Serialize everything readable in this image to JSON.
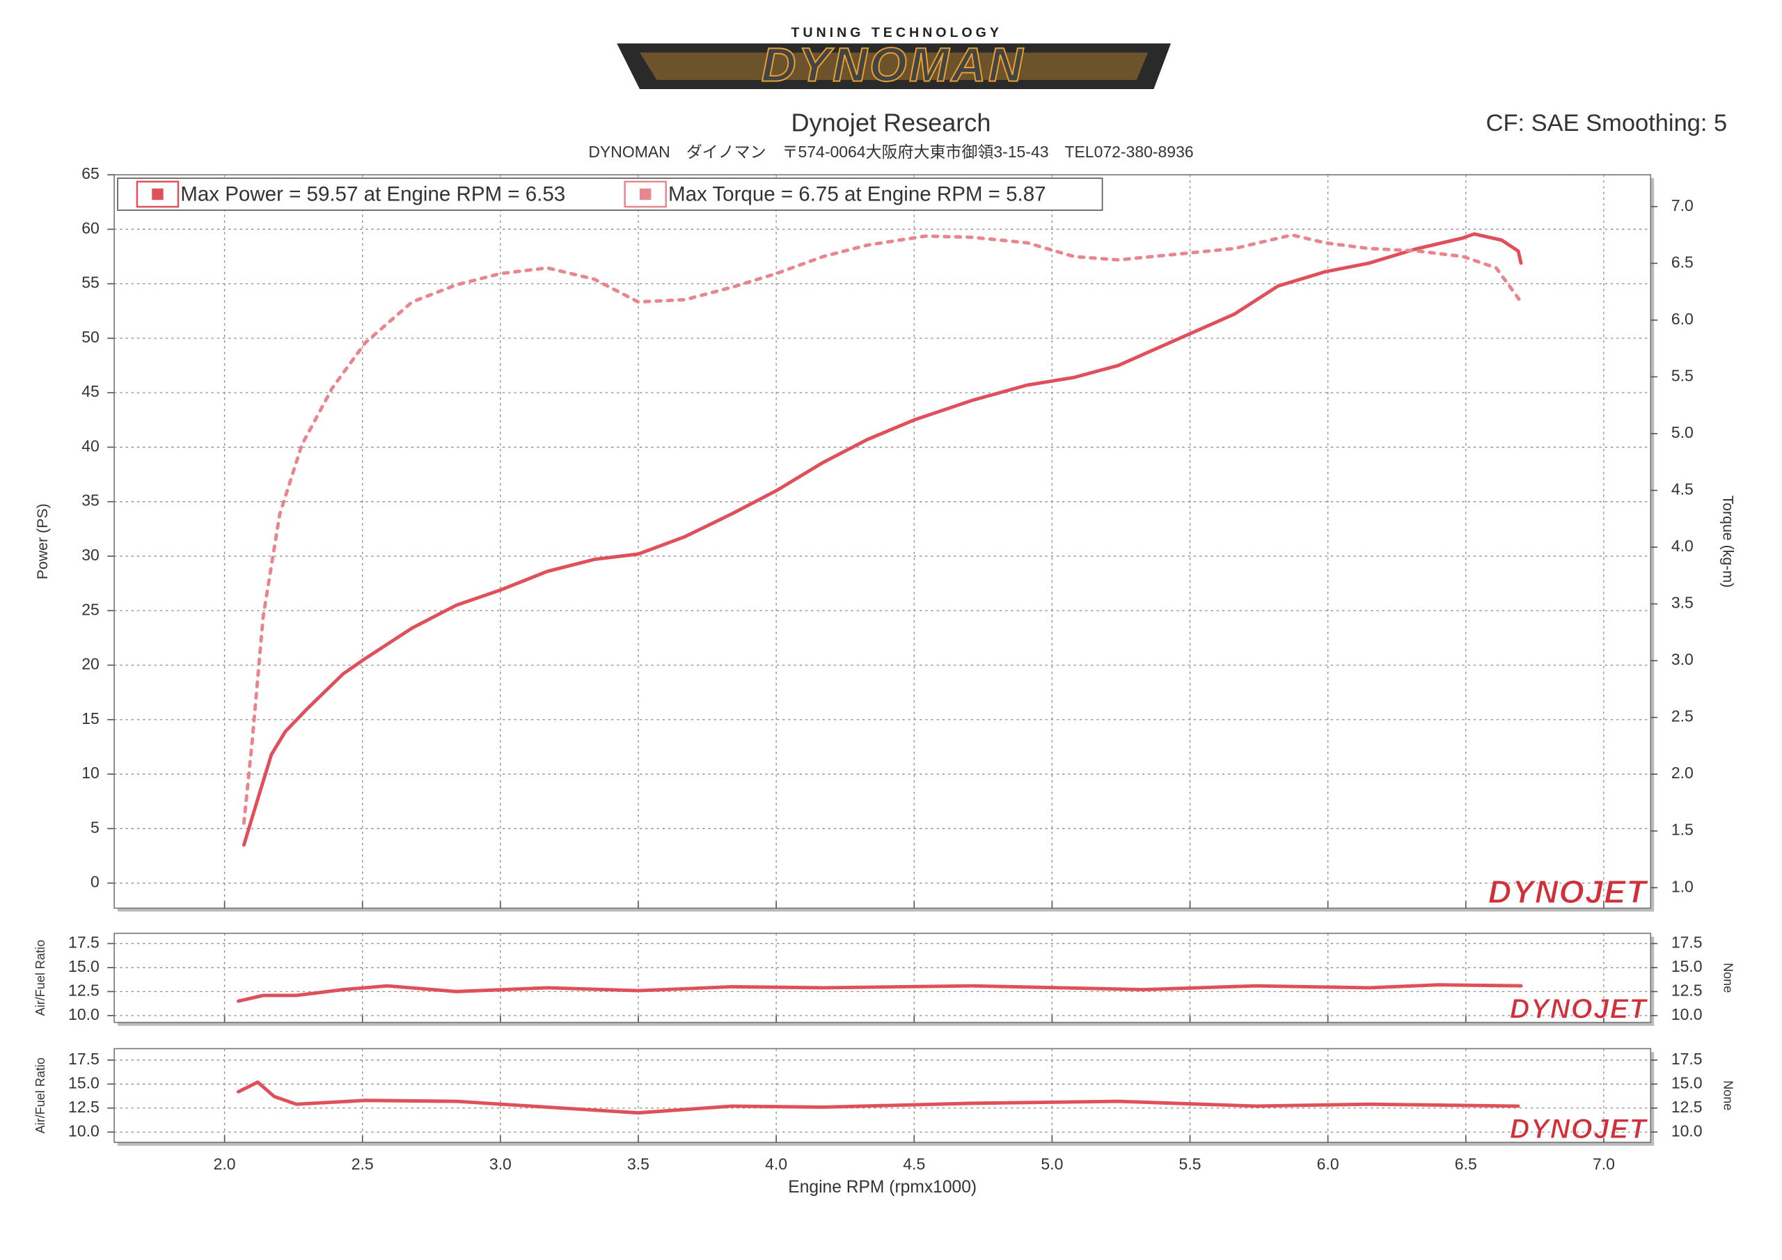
{
  "header": {
    "tagline": "TUNING TECHNOLOGY",
    "brand": "DYNOMAN",
    "company": "Dynojet Research",
    "address": "DYNOMAN　ダイノマン　〒574-0064大阪府大東市御領3-15-43　TEL072-380-8936",
    "settings": "CF: SAE Smoothing: 5"
  },
  "chart_data": [
    {
      "type": "line",
      "ylabel": "Power (PS)",
      "y2label": "Torque (kg-m)",
      "watermark": "DYNOJET",
      "grid": true,
      "xlim": [
        1.6,
        7.17
      ],
      "xticks": [
        2.0,
        2.5,
        3.0,
        3.5,
        4.0,
        4.5,
        5.0,
        5.5,
        6.0,
        6.5,
        7.0
      ],
      "ylim": [
        -2.3,
        65
      ],
      "yticks": [
        0,
        5,
        10,
        15,
        20,
        25,
        30,
        35,
        40,
        45,
        50,
        55,
        60,
        65
      ],
      "y2lim": [
        0.82,
        7.28
      ],
      "y2ticks": [
        {
          "value": 1.0,
          "label": "1.0"
        },
        {
          "value": 1.5,
          "label": "1.5"
        },
        {
          "value": 2.0,
          "label": "2.0"
        },
        {
          "value": 2.5,
          "label": "2.5"
        },
        {
          "value": 3.0,
          "label": "3.0"
        },
        {
          "value": 3.5,
          "label": "3.5"
        },
        {
          "value": 4.0,
          "label": "4.0"
        },
        {
          "value": 4.5,
          "label": "4.5"
        },
        {
          "value": 5.0,
          "label": "5.0"
        },
        {
          "value": 5.5,
          "label": "5.5"
        },
        {
          "value": 6.0,
          "label": "6.0"
        },
        {
          "value": 6.5,
          "label": "6.5"
        },
        {
          "value": 7.0,
          "label": "7.0"
        }
      ],
      "series": [
        {
          "name": "Max Power = 59.57 at Engine RPM = 6.53",
          "color": "#e0505a",
          "x": [
            2.07,
            2.12,
            2.17,
            2.22,
            2.3,
            2.43,
            2.51,
            2.68,
            2.84,
            3.0,
            3.17,
            3.34,
            3.5,
            3.67,
            3.84,
            4.0,
            4.17,
            4.33,
            4.5,
            4.71,
            4.91,
            5.08,
            5.24,
            5.49,
            5.66,
            5.82,
            5.99,
            6.15,
            6.32,
            6.49,
            6.53,
            6.63,
            6.69,
            6.7
          ],
          "values": [
            3.5,
            7.7,
            11.8,
            13.9,
            16.0,
            19.2,
            20.6,
            23.4,
            25.5,
            26.9,
            28.6,
            29.7,
            30.2,
            31.8,
            33.9,
            36.0,
            38.6,
            40.7,
            42.5,
            44.3,
            45.7,
            46.4,
            47.5,
            50.3,
            52.2,
            54.8,
            56.1,
            56.9,
            58.2,
            59.2,
            59.57,
            59.0,
            58.0,
            56.9
          ]
        },
        {
          "name": "Max Torque = 6.75 at Engine RPM = 5.87",
          "color": "#e8858d",
          "axis": "y2",
          "dash": true,
          "x": [
            2.07,
            2.1,
            2.14,
            2.2,
            2.28,
            2.39,
            2.51,
            2.68,
            2.84,
            3.0,
            3.17,
            3.34,
            3.5,
            3.67,
            3.84,
            4.0,
            4.17,
            4.33,
            4.54,
            4.71,
            4.91,
            5.08,
            5.24,
            5.49,
            5.66,
            5.87,
            5.99,
            6.15,
            6.32,
            6.49,
            6.61,
            6.7
          ],
          "values": [
            1.57,
            2.28,
            3.39,
            4.29,
            4.9,
            5.4,
            5.8,
            6.16,
            6.31,
            6.41,
            6.46,
            6.36,
            6.16,
            6.18,
            6.29,
            6.41,
            6.56,
            6.66,
            6.74,
            6.73,
            6.68,
            6.56,
            6.53,
            6.59,
            6.63,
            6.75,
            6.68,
            6.63,
            6.61,
            6.56,
            6.46,
            6.16
          ]
        }
      ]
    },
    {
      "type": "line",
      "ylabel": "Air/Fuel Ratio",
      "y2label": "None",
      "watermark": "DYNOJET",
      "grid": true,
      "xlim": [
        1.6,
        7.17
      ],
      "xticks": [
        2.0,
        2.5,
        3.0,
        3.5,
        4.0,
        4.5,
        5.0,
        5.5,
        6.0,
        6.5,
        7.0
      ],
      "ylim": [
        9.29,
        18.57
      ],
      "yticks": [
        {
          "value": 10.0,
          "label": "10.0"
        },
        {
          "value": 12.5,
          "label": "12.5"
        },
        {
          "value": 15.0,
          "label": "15.0"
        },
        {
          "value": 17.5,
          "label": "17.5"
        }
      ],
      "y2lim": [
        9.29,
        18.57
      ],
      "y2ticks": [
        {
          "value": 10.0,
          "label": "10.0"
        },
        {
          "value": 12.5,
          "label": "12.5"
        },
        {
          "value": 15.0,
          "label": "15.0"
        },
        {
          "value": 17.5,
          "label": "17.5"
        }
      ],
      "series": [
        {
          "color": "#e0505a",
          "x": [
            2.05,
            2.14,
            2.26,
            2.43,
            2.59,
            2.84,
            3.17,
            3.5,
            3.84,
            4.17,
            4.71,
            5.33,
            5.74,
            6.15,
            6.4,
            6.7
          ],
          "values": [
            11.5,
            12.1,
            12.1,
            12.7,
            13.1,
            12.5,
            12.9,
            12.6,
            13.0,
            12.9,
            13.1,
            12.7,
            13.1,
            12.9,
            13.2,
            13.1
          ]
        }
      ]
    },
    {
      "type": "line",
      "ylabel": "Air/Fuel Ratio",
      "y2label": "None",
      "xlabel": "Engine RPM (rpmx1000)",
      "watermark": "DYNOJET",
      "grid": true,
      "xlim": [
        1.6,
        7.17
      ],
      "xticks": [
        {
          "value": 2.0,
          "label": "2.0"
        },
        {
          "value": 2.5,
          "label": "2.5"
        },
        {
          "value": 3.0,
          "label": "3.0"
        },
        {
          "value": 3.5,
          "label": "3.5"
        },
        {
          "value": 4.0,
          "label": "4.0"
        },
        {
          "value": 4.5,
          "label": "4.5"
        },
        {
          "value": 5.0,
          "label": "5.0"
        },
        {
          "value": 5.5,
          "label": "5.5"
        },
        {
          "value": 6.0,
          "label": "6.0"
        },
        {
          "value": 6.5,
          "label": "6.5"
        },
        {
          "value": 7.0,
          "label": "7.0"
        }
      ],
      "ylim": [
        8.93,
        18.69
      ],
      "yticks": [
        {
          "value": 10.0,
          "label": "10.0"
        },
        {
          "value": 12.5,
          "label": "12.5"
        },
        {
          "value": 15.0,
          "label": "15.0"
        },
        {
          "value": 17.5,
          "label": "17.5"
        }
      ],
      "y2lim": [
        8.93,
        18.69
      ],
      "y2ticks": [
        {
          "value": 10.0,
          "label": "10.0"
        },
        {
          "value": 12.5,
          "label": "12.5"
        },
        {
          "value": 15.0,
          "label": "15.0"
        },
        {
          "value": 17.5,
          "label": "17.5"
        }
      ],
      "series": [
        {
          "color": "#e0505a",
          "x": [
            2.05,
            2.12,
            2.18,
            2.26,
            2.51,
            2.84,
            3.17,
            3.5,
            3.84,
            4.17,
            4.71,
            5.24,
            5.74,
            6.15,
            6.69
          ],
          "values": [
            14.2,
            15.2,
            13.7,
            12.9,
            13.3,
            13.2,
            12.6,
            12.0,
            12.7,
            12.6,
            13.0,
            13.2,
            12.7,
            12.9,
            12.7
          ]
        }
      ]
    }
  ]
}
